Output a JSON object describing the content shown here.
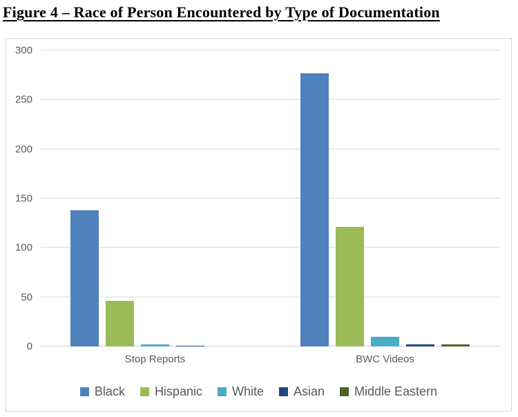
{
  "title": "Figure 4 – Race of Person Encountered by Type of Documentation",
  "chart_data": {
    "type": "bar",
    "title": "Figure 4 – Race of Person Encountered by Type of Documentation",
    "categories": [
      "Stop Reports",
      "BWC Videos"
    ],
    "series": [
      {
        "name": "Black",
        "color": "#4f81bd",
        "values": [
          138,
          277
        ]
      },
      {
        "name": "Hispanic",
        "color": "#9bbb59",
        "values": [
          46,
          121
        ]
      },
      {
        "name": "White",
        "color": "#4bacc6",
        "values": [
          2,
          10
        ]
      },
      {
        "name": "Asian",
        "color": "#1f497d",
        "values": [
          1,
          2
        ]
      },
      {
        "name": "Middle Eastern",
        "color": "#4f6228",
        "values": [
          0,
          2
        ]
      }
    ],
    "ylim": [
      0,
      300
    ],
    "yticks": [
      0,
      50,
      100,
      150,
      200,
      250,
      300
    ],
    "xlabel": "",
    "ylabel": "",
    "grid": true,
    "legend_position": "bottom"
  },
  "colors": {
    "axis_text": "#595959",
    "gridline": "#d9d9d9",
    "chart_border": "#ccd9e1",
    "background": "#ffffff"
  }
}
